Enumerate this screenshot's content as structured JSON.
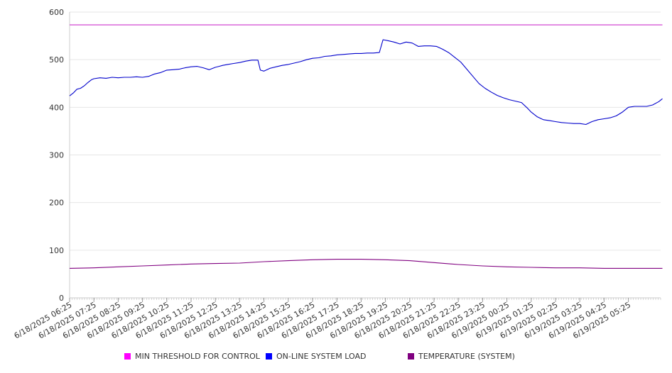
{
  "chart_data": {
    "type": "line",
    "title": "",
    "xlabel": "",
    "ylabel": "",
    "ylim": [
      0,
      600
    ],
    "yticks": [
      0,
      100,
      200,
      300,
      400,
      500,
      600
    ],
    "grid": "horizontal",
    "legend_placement": "bottom",
    "x_labels": [
      "6/18/2025 06:25",
      "6/18/2025 07:25",
      "6/18/2025 08:25",
      "6/18/2025 09:25",
      "6/18/2025 10:25",
      "6/18/2025 11:25",
      "6/18/2025 12:25",
      "6/18/2025 13:25",
      "6/18/2025 14:25",
      "6/18/2025 15:25",
      "6/18/2025 16:25",
      "6/18/2025 17:25",
      "6/18/2025 18:25",
      "6/18/2025 19:25",
      "6/18/2025 20:25",
      "6/18/2025 21:25",
      "6/18/2025 22:25",
      "6/18/2025 23:25",
      "6/19/2025 00:25",
      "6/19/2025 01:25",
      "6/19/2025 02:25",
      "6/19/2025 03:25",
      "6/19/2025 04:25",
      "6/19/2025 05:25"
    ],
    "series": [
      {
        "name": "MIN THRESHOLD FOR CONTROL",
        "color": "#cc33cc",
        "legend_color": "#ff00ff",
        "x": [
          0,
          24.4
        ],
        "y": [
          573,
          573
        ]
      },
      {
        "name": "ON-LINE SYSTEM LOAD",
        "color": "#0000cc",
        "legend_color": "#0000ff",
        "x": [
          0,
          0.15,
          0.3,
          0.45,
          0.6,
          0.75,
          0.9,
          1,
          1.25,
          1.5,
          1.75,
          2,
          2.25,
          2.5,
          2.75,
          3,
          3.25,
          3.5,
          3.75,
          4,
          4.25,
          4.5,
          4.75,
          5,
          5.25,
          5.5,
          5.75,
          6,
          6.15,
          6.3,
          6.5,
          6.75,
          7,
          7.25,
          7.5,
          7.75,
          7.85,
          8,
          8.25,
          8.5,
          8.75,
          9,
          9.25,
          9.5,
          9.75,
          10,
          10.25,
          10.5,
          10.75,
          11,
          11.25,
          11.5,
          11.75,
          12,
          12.25,
          12.5,
          12.75,
          12.9,
          13.1,
          13.35,
          13.6,
          13.85,
          14.1,
          14.35,
          14.6,
          14.85,
          15.1,
          15.35,
          15.6,
          15.85,
          16.1,
          16.35,
          16.6,
          16.85,
          17.1,
          17.35,
          17.6,
          17.85,
          18.1,
          18.35,
          18.6,
          18.85,
          19,
          19.25,
          19.5,
          19.75,
          20,
          20.25,
          20.5,
          20.75,
          21,
          21.25,
          21.5,
          21.75,
          22,
          22.25,
          22.5,
          22.75,
          23,
          23.25,
          23.5,
          23.75,
          24,
          24.25,
          24.4
        ],
        "y": [
          424,
          430,
          438,
          440,
          445,
          452,
          458,
          460,
          462,
          461,
          463,
          462,
          463,
          463,
          464,
          463,
          465,
          470,
          473,
          478,
          479,
          480,
          483,
          485,
          486,
          483,
          479,
          484,
          486,
          488,
          490,
          492,
          494,
          497,
          499,
          499,
          478,
          476,
          482,
          485,
          488,
          490,
          493,
          496,
          500,
          503,
          504,
          507,
          508,
          510,
          511,
          512,
          513,
          513,
          514,
          514,
          515,
          542,
          540,
          537,
          533,
          537,
          535,
          528,
          529,
          529,
          528,
          522,
          515,
          505,
          495,
          480,
          465,
          450,
          440,
          432,
          425,
          420,
          416,
          413,
          410,
          398,
          390,
          380,
          374,
          372,
          370,
          368,
          367,
          366,
          366,
          364,
          370,
          374,
          376,
          378,
          382,
          390,
          400,
          402,
          402,
          402,
          405,
          412,
          418
        ]
      },
      {
        "name": "TEMPERATURE (SYSTEM)",
        "color": "#800080",
        "legend_color": "#800080",
        "x": [
          0,
          1,
          2,
          3,
          4,
          5,
          6,
          7,
          8,
          9,
          10,
          11,
          12,
          13,
          14,
          15,
          16,
          17,
          18,
          19,
          20,
          21,
          22,
          23,
          24,
          24.4
        ],
        "y": [
          62,
          63,
          65,
          67,
          69,
          71,
          72,
          73,
          76,
          78,
          80,
          81,
          81,
          80,
          78,
          74,
          70,
          67,
          65,
          64,
          63,
          63,
          62,
          62,
          62,
          62
        ]
      }
    ]
  }
}
